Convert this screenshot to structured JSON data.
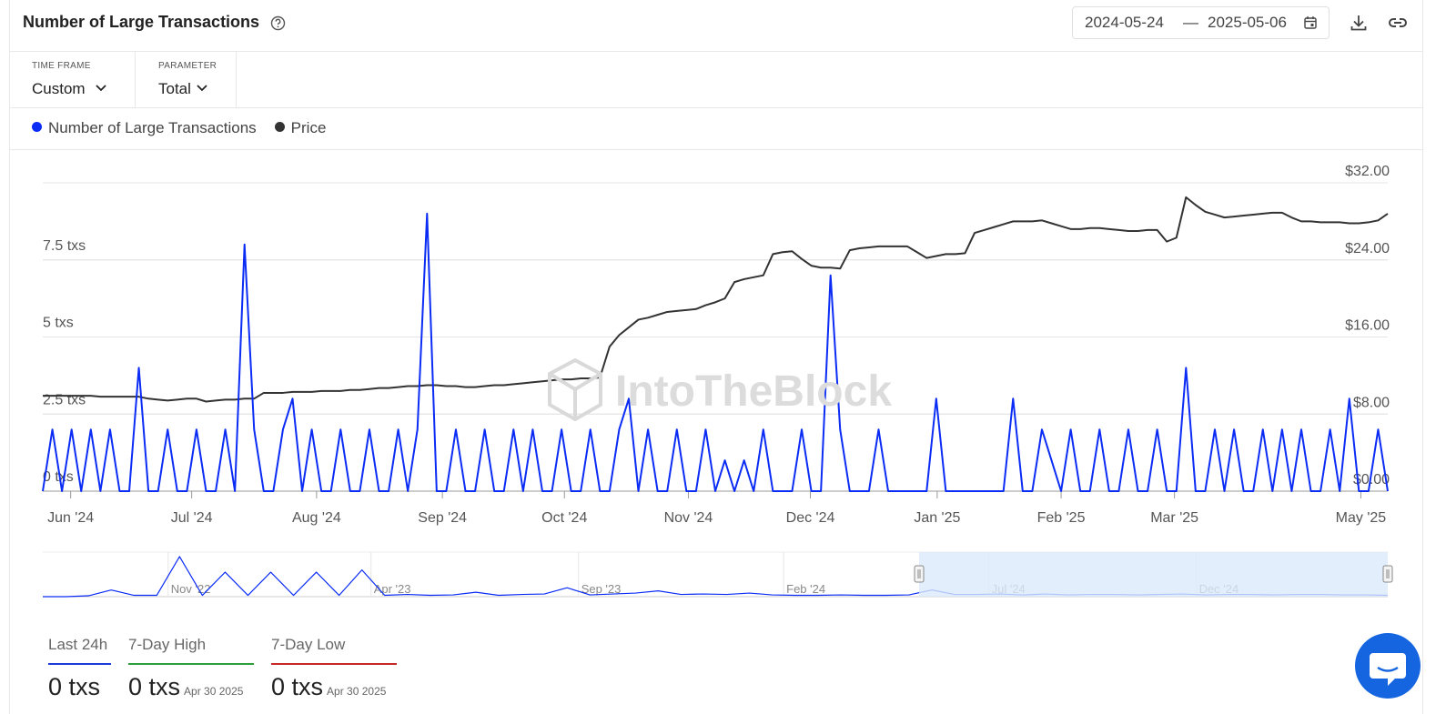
{
  "header": {
    "title": "Number of Large Transactions",
    "date_start": "2024-05-24",
    "date_separator": "—",
    "date_end": "2025-05-06"
  },
  "controls": [
    {
      "label": "TIME FRAME",
      "value": "Custom"
    },
    {
      "label": "PARAMETER",
      "value": "Total"
    }
  ],
  "watermark": "IntoTheBlock",
  "chart_data": [
    {
      "type": "line",
      "xlim": [
        0,
        140
      ],
      "xticks": [
        {
          "value": 2.9,
          "label": "Jun '24"
        },
        {
          "value": 15.5,
          "label": "Jul '24"
        },
        {
          "value": 28.5,
          "label": "Aug '24"
        },
        {
          "value": 41.6,
          "label": "Sep '24"
        },
        {
          "value": 54.3,
          "label": "Oct '24"
        },
        {
          "value": 67.2,
          "label": "Nov '24"
        },
        {
          "value": 79.9,
          "label": "Dec '24"
        },
        {
          "value": 93.1,
          "label": "Jan '25"
        },
        {
          "value": 106,
          "label": "Feb '25"
        },
        {
          "value": 117.8,
          "label": "Mar '25"
        },
        {
          "value": 137.2,
          "label": "May '25"
        }
      ],
      "ylim": [
        0,
        10
      ],
      "yticks": [
        {
          "value": 0,
          "label": "0 txs"
        },
        {
          "value": 2.5,
          "label": "2.5 txs"
        },
        {
          "value": 5,
          "label": "5 txs"
        },
        {
          "value": 7.5,
          "label": "7.5 txs"
        }
      ],
      "y2lim": [
        0,
        32
      ],
      "y2ticks": [
        {
          "value": 0,
          "label": "$0.00"
        },
        {
          "value": 8,
          "label": "$8.00"
        },
        {
          "value": 16,
          "label": "$16.00"
        },
        {
          "value": 24,
          "label": "$24.00"
        },
        {
          "value": 32,
          "label": "$32.00"
        }
      ],
      "grid": true,
      "series": [
        {
          "name": "Number of Large Transactions",
          "color": "#0a2cf5",
          "values": [
            0,
            2,
            0,
            2,
            0,
            2,
            0,
            2,
            0,
            0,
            4,
            0,
            0,
            2,
            0,
            0,
            2,
            0,
            0,
            2,
            0,
            8,
            2,
            0,
            0,
            2,
            3,
            0,
            2,
            0,
            0,
            2,
            0,
            0,
            2,
            0,
            0,
            2,
            0,
            2,
            9,
            0,
            0,
            2,
            0,
            0,
            2,
            0,
            0,
            2,
            0,
            2,
            0,
            0,
            2,
            0,
            0,
            2,
            0,
            0,
            2,
            3,
            0,
            2,
            0,
            0,
            2,
            0,
            0,
            2,
            0,
            1,
            0,
            1,
            0,
            2,
            0,
            0,
            0,
            2,
            0,
            0,
            7,
            2,
            0,
            0,
            0,
            2,
            0,
            0,
            0,
            0,
            0,
            3,
            0,
            0,
            0,
            0,
            0,
            0,
            0,
            3,
            0,
            0,
            2,
            1,
            0,
            2,
            0,
            0,
            2,
            0,
            0,
            2,
            0,
            0,
            2,
            0,
            0,
            4,
            0,
            0,
            2,
            0,
            2,
            0,
            0,
            2,
            0,
            2,
            0,
            2,
            0,
            0,
            2,
            0,
            3,
            0,
            0,
            2,
            0
          ]
        },
        {
          "name": "Price",
          "color": "#333333",
          "axis": "y2",
          "values": [
            9.9,
            9.9,
            9.9,
            9.9,
            9.9,
            9.9,
            9.8,
            9.8,
            9.8,
            9.8,
            9.8,
            9.6,
            9.5,
            9.4,
            9.5,
            9.6,
            9.6,
            9.3,
            9.4,
            9.5,
            9.5,
            9.6,
            9.6,
            10.2,
            10.2,
            10.2,
            10.3,
            10.3,
            10.3,
            10.4,
            10.4,
            10.4,
            10.5,
            10.5,
            10.6,
            10.7,
            10.7,
            10.8,
            10.9,
            10.9,
            11.0,
            11.0,
            10.9,
            10.9,
            10.8,
            10.8,
            10.9,
            11.0,
            11.0,
            11.1,
            11.2,
            11.3,
            11.4,
            11.5,
            11.6,
            11.6,
            11.7,
            11.7,
            11.8,
            15.0,
            16.2,
            17.0,
            17.8,
            18.0,
            18.3,
            18.6,
            18.7,
            18.8,
            18.9,
            19.3,
            19.6,
            20.0,
            21.7,
            22.0,
            22.2,
            22.4,
            24.6,
            24.8,
            24.9,
            24.1,
            23.4,
            23.2,
            23.2,
            23.1,
            25.0,
            25.2,
            25.3,
            25.4,
            25.4,
            25.4,
            25.4,
            24.8,
            24.2,
            24.4,
            24.6,
            24.6,
            24.7,
            26.8,
            27.1,
            27.4,
            27.7,
            28.0,
            28.0,
            28.0,
            28.1,
            27.8,
            27.5,
            27.2,
            27.2,
            27.3,
            27.3,
            27.2,
            27.1,
            27.0,
            27.0,
            27.1,
            27.1,
            25.9,
            26.3,
            30.5,
            29.7,
            29.0,
            28.7,
            28.4,
            28.5,
            28.6,
            28.7,
            28.8,
            28.9,
            28.9,
            28.4,
            28.0,
            28.0,
            27.9,
            27.9,
            27.9,
            27.8,
            27.8,
            27.9,
            28.1,
            28.8
          ]
        }
      ]
    },
    {
      "type": "line",
      "xlim": [
        0,
        59
      ],
      "xticks": [
        {
          "value": 5.5,
          "label": "Nov '22"
        },
        {
          "value": 14.4,
          "label": "Apr '23"
        },
        {
          "value": 23.5,
          "label": "Sep '23"
        },
        {
          "value": 32.5,
          "label": "Feb '24"
        },
        {
          "value": 41.5,
          "label": "Jul '24"
        },
        {
          "value": 50.6,
          "label": "Dec '24"
        }
      ],
      "ylim": [
        0,
        10
      ],
      "grid": true,
      "series": [
        {
          "color": "#0a2cf5",
          "values": [
            0,
            0,
            0.2,
            1.5,
            0.3,
            0.3,
            9,
            0.3,
            5.5,
            0.3,
            5.5,
            0.3,
            5.5,
            0.3,
            6,
            0.3,
            0.5,
            0.3,
            0.4,
            1.0,
            0.3,
            0.5,
            0.6,
            2,
            0.4,
            0.6,
            0.8,
            1.3,
            0.5,
            0.6,
            0.5,
            0.8,
            0.4,
            0.3,
            0.3,
            0.4,
            0.3,
            0.3,
            0.4,
            1.5,
            0.5,
            0.5,
            0.6,
            0.4,
            0.6,
            0.4,
            0.5,
            0.5,
            0.4,
            0.5,
            0.6,
            0.4,
            0.5,
            0.5,
            0.4,
            0.5,
            0.5,
            0.4,
            0.4,
            0.3
          ]
        }
      ]
    }
  ],
  "stats": [
    {
      "label": "Last 24h",
      "value": "0 txs"
    },
    {
      "label": "7-Day High",
      "value": "0 txs",
      "date": "Apr 30 2025"
    },
    {
      "label": "7-Day Low",
      "value": "0 txs",
      "date": "Apr 30 2025"
    }
  ]
}
